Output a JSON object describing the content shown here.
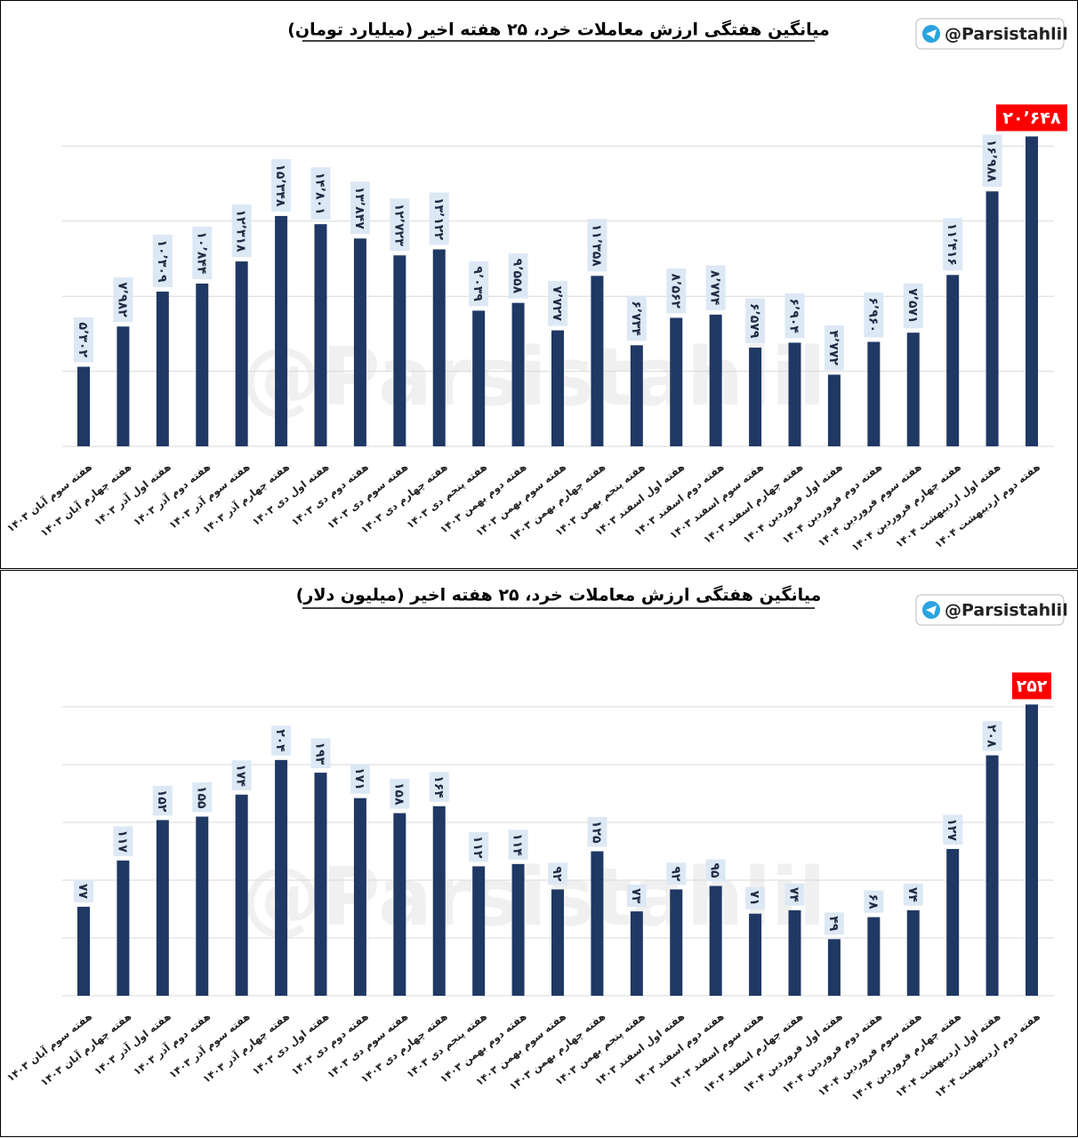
{
  "chart_data": [
    {
      "type": "bar",
      "title": "میانگین هفتگی ارزش معاملات خرد، ۲۵ هفته اخیر (میلیارد تومان)",
      "badge": "@Parsistahlil",
      "categories": [
        "هفته سوم آبان ۱۴۰۳",
        "هفته چهارم آبان ۱۴۰۳",
        "هفته اول آذر ۱۴۰۳",
        "هفته دوم آذر ۱۴۰۳",
        "هفته سوم آذر ۱۴۰۳",
        "هفته چهارم آذر ۱۴۰۳",
        "هفته اول دی ۱۴۰۳",
        "هفته دوم دی ۱۴۰۳",
        "هفته سوم دی ۱۴۰۳",
        "هفته چهارم دی ۱۴۰۳",
        "هفته پنجم دی ۱۴۰۳",
        "هفته دوم بهمن ۱۴۰۳",
        "هفته سوم بهمن ۱۴۰۳",
        "هفته چهارم بهمن ۱۴۰۳",
        "هفته پنجم بهمن ۱۴۰۳",
        "هفته اول اسفند ۱۴۰۳",
        "هفته دوم اسفند ۱۴۰۳",
        "هفته سوم اسفند ۱۴۰۳",
        "هفته چهارم اسفند ۱۴۰۳",
        "هفته اول فروردین ۱۴۰۴",
        "هفته دوم فروردین ۱۴۰۴",
        "هفته سوم فروردین ۱۴۰۴",
        "هفته چهارم فروردین ۱۴۰۴",
        "هفته اول اردیبهشت ۱۴۰۴",
        "هفته دوم اردیبهشت ۱۴۰۴"
      ],
      "values": [
        5302,
        7982,
        10309,
        10844,
        12318,
        15348,
        14801,
        13847,
        12723,
        13122,
        9039,
        9558,
        7727,
        11358,
        6734,
        8562,
        8774,
        6579,
        6904,
        4772,
        6960,
        7571,
        11416,
        16988,
        20648
      ],
      "value_labels": [
        "۵٬۳۰۲",
        "۷٬۹۸۲",
        "۱۰٬۳۰۹",
        "۱۰٬۸۴۴",
        "۱۲٬۳۱۸",
        "۱۵٬۳۴۸",
        "۱۴٬۸۰۱",
        "۱۳٬۸۴۷",
        "۱۲٬۷۲۳",
        "۱۳٬۱۲۲",
        "۹٬۰۳۹",
        "۹٬۵۵۸",
        "۷٬۷۲۷",
        "۱۱٬۳۵۸",
        "۶٬۷۳۴",
        "۸٬۵۶۲",
        "۸٬۷۷۴",
        "۶٬۵۷۹",
        "۶٬۹۰۴",
        "۴٬۷۷۲",
        "۶٬۹۶۰",
        "۷٬۵۷۱",
        "۱۱٬۴۱۶",
        "۱۶٬۹۸۸",
        "۲۰٬۶۴۸"
      ],
      "color": "#1f3864",
      "ylim": [
        0,
        25000
      ],
      "yticks": [
        0,
        5000,
        10000,
        15000,
        20000
      ],
      "grid": true
    },
    {
      "type": "bar",
      "title": "میانگین هفتگی ارزش معاملات خرد، ۲۵ هفته اخیر (میلیون دلار)",
      "badge": "@Parsistahlil",
      "categories": [
        "هفته سوم آبان ۱۴۰۳",
        "هفته چهارم آبان ۱۴۰۳",
        "هفته اول آذر ۱۴۰۳",
        "هفته دوم آذر ۱۴۰۳",
        "هفته سوم آذر ۱۴۰۳",
        "هفته چهارم آذر ۱۴۰۳",
        "هفته اول دی ۱۴۰۳",
        "هفته دوم دی ۱۴۰۳",
        "هفته سوم دی ۱۴۰۳",
        "هفته چهارم دی ۱۴۰۳",
        "هفته پنجم دی ۱۴۰۳",
        "هفته دوم بهمن ۱۴۰۳",
        "هفته سوم بهمن ۱۴۰۳",
        "هفته چهارم بهمن ۱۴۰۳",
        "هفته پنجم بهمن ۱۴۰۳",
        "هفته اول اسفند ۱۴۰۳",
        "هفته دوم اسفند ۱۴۰۳",
        "هفته سوم اسفند ۱۴۰۳",
        "هفته چهارم اسفند ۱۴۰۳",
        "هفته اول فروردین ۱۴۰۴",
        "هفته دوم فروردین ۱۴۰۴",
        "هفته سوم فروردین ۱۴۰۴",
        "هفته چهارم فروردین ۱۴۰۴",
        "هفته اول اردیبهشت ۱۴۰۴",
        "هفته دوم اردیبهشت ۱۴۰۴"
      ],
      "values": [
        77,
        117,
        152,
        155,
        174,
        204,
        193,
        171,
        158,
        164,
        112,
        114,
        92,
        125,
        73,
        92,
        95,
        71,
        74,
        49,
        68,
        74,
        127,
        208,
        252
      ],
      "value_labels": [
        "۷۷",
        "۱۱۷",
        "۱۵۲",
        "۱۵۵",
        "۱۷۴",
        "۲۰۴",
        "۱۹۳",
        "۱۷۱",
        "۱۵۸",
        "۱۶۴",
        "۱۱۲",
        "۱۱۴",
        "۹۲",
        "۱۲۵",
        "۷۳",
        "۹۲",
        "۹۵",
        "۷۱",
        "۷۴",
        "۴۹",
        "۶۸",
        "۷۴",
        "۱۲۷",
        "۲۰۸",
        "۲۵۲"
      ],
      "color": "#1f3864",
      "ylim": [
        0,
        300
      ],
      "yticks": [
        0,
        50,
        100,
        150,
        200,
        250
      ],
      "grid": true
    }
  ]
}
